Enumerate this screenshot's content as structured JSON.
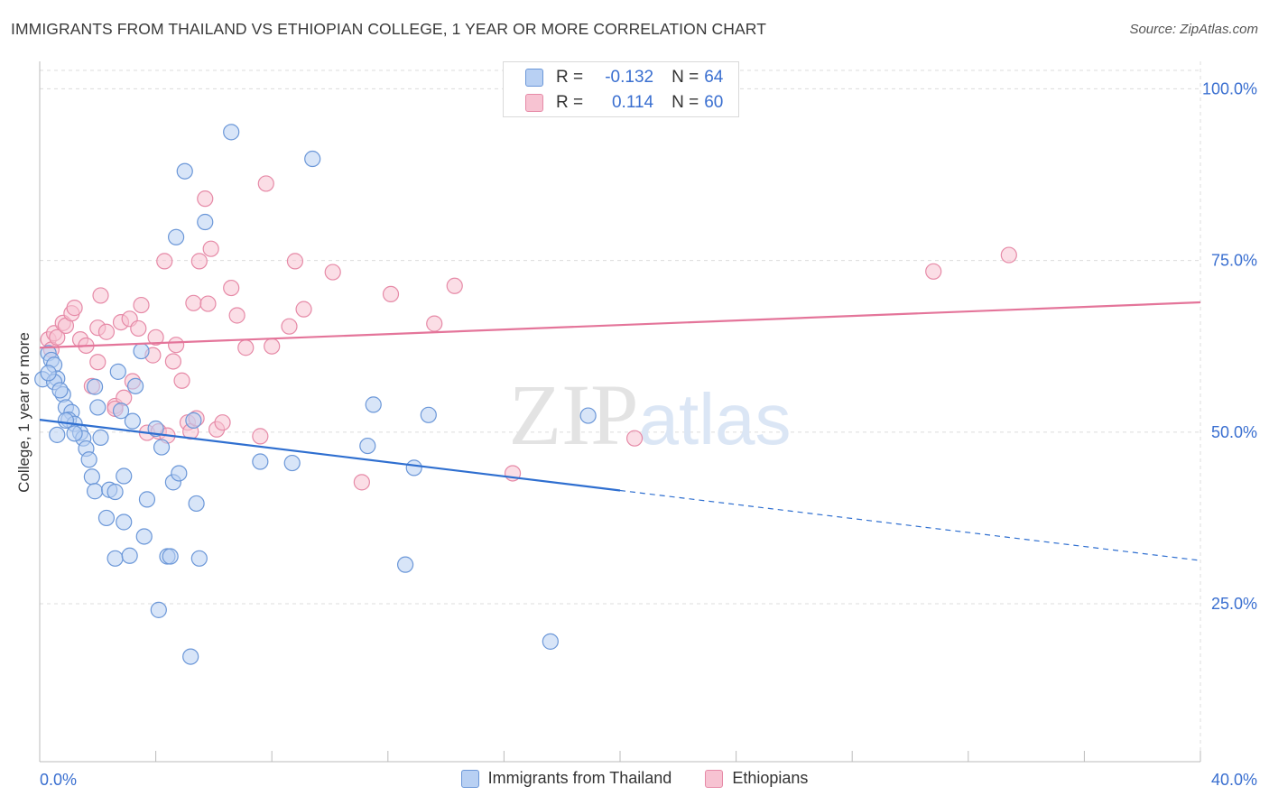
{
  "title": "IMMIGRANTS FROM THAILAND VS ETHIOPIAN COLLEGE, 1 YEAR OR MORE CORRELATION CHART",
  "source": "Source: ZipAtlas.com",
  "watermark": "ZIPatlas",
  "colors": {
    "blue_fill": "#b8d0f3",
    "blue_stroke": "#6b97d8",
    "blue_line": "#2f6fd0",
    "pink_fill": "#f7c3d2",
    "pink_stroke": "#e68aa7",
    "pink_line": "#e4759a",
    "axis_text": "#3a6fd0",
    "grid": "#dcdcdc"
  },
  "stats": {
    "blue": {
      "r_label": "R =",
      "r_value": "-0.132",
      "n_label": "N =",
      "n_value": "64"
    },
    "pink": {
      "r_label": "R =",
      "r_value": "0.114",
      "n_label": "N =",
      "n_value": "60"
    }
  },
  "chart_data": {
    "type": "scatter",
    "title": "IMMIGRANTS FROM THAILAND VS ETHIOPIAN COLLEGE, 1 YEAR OR MORE CORRELATION CHART",
    "xlabel": "",
    "ylabel": "College, 1 year or more",
    "xlim": [
      0,
      40
    ],
    "ylim": [
      2,
      104
    ],
    "x_tick_labels": [
      "0.0%",
      "40.0%"
    ],
    "y_ticks": [
      25,
      50,
      75,
      100
    ],
    "y_tick_labels": [
      "25.0%",
      "50.0%",
      "75.0%",
      "100.0%"
    ],
    "grid": true,
    "legend_position": "bottom",
    "series": [
      {
        "name": "Immigrants from Thailand",
        "color": "#6b97d8",
        "points": [
          [
            0.1,
            57.7
          ],
          [
            0.3,
            61.5
          ],
          [
            0.4,
            60.5
          ],
          [
            0.5,
            59.8
          ],
          [
            0.6,
            57.8
          ],
          [
            0.5,
            57.3
          ],
          [
            0.8,
            55.5
          ],
          [
            0.9,
            53.6
          ],
          [
            0.7,
            56.1
          ],
          [
            1.1,
            52.9
          ],
          [
            1.0,
            51.8
          ],
          [
            1.2,
            51.2
          ],
          [
            1.4,
            49.9
          ],
          [
            1.5,
            49.1
          ],
          [
            1.6,
            47.6
          ],
          [
            1.7,
            46.0
          ],
          [
            1.8,
            43.5
          ],
          [
            1.9,
            41.4
          ],
          [
            2.1,
            49.2
          ],
          [
            2.0,
            53.6
          ],
          [
            1.9,
            56.6
          ],
          [
            2.4,
            41.6
          ],
          [
            2.3,
            37.5
          ],
          [
            2.6,
            31.6
          ],
          [
            2.7,
            58.8
          ],
          [
            2.8,
            53.1
          ],
          [
            2.9,
            43.6
          ],
          [
            2.9,
            36.9
          ],
          [
            3.1,
            32.0
          ],
          [
            3.2,
            51.6
          ],
          [
            3.3,
            56.7
          ],
          [
            3.6,
            34.8
          ],
          [
            3.7,
            40.2
          ],
          [
            4.1,
            24.1
          ],
          [
            4.2,
            47.8
          ],
          [
            4.4,
            31.9
          ],
          [
            4.5,
            31.9
          ],
          [
            4.6,
            42.7
          ],
          [
            4.8,
            44.0
          ],
          [
            4.7,
            78.4
          ],
          [
            5.0,
            88.0
          ],
          [
            5.2,
            17.3
          ],
          [
            5.3,
            51.7
          ],
          [
            5.4,
            39.6
          ],
          [
            5.5,
            31.6
          ],
          [
            5.7,
            80.6
          ],
          [
            6.6,
            93.7
          ],
          [
            7.6,
            45.7
          ],
          [
            8.7,
            45.5
          ],
          [
            9.4,
            89.8
          ],
          [
            11.3,
            48.0
          ],
          [
            11.5,
            54.0
          ],
          [
            12.6,
            30.7
          ],
          [
            12.9,
            44.8
          ],
          [
            13.4,
            52.5
          ],
          [
            17.6,
            19.5
          ],
          [
            18.9,
            52.4
          ],
          [
            0.3,
            58.6
          ],
          [
            1.2,
            49.8
          ],
          [
            2.6,
            41.3
          ],
          [
            0.6,
            49.6
          ],
          [
            0.9,
            51.7
          ],
          [
            4.0,
            50.5
          ],
          [
            3.5,
            61.8
          ]
        ]
      },
      {
        "name": "Ethiopians",
        "color": "#e68aa7",
        "points": [
          [
            0.3,
            63.5
          ],
          [
            0.4,
            62.0
          ],
          [
            0.5,
            64.4
          ],
          [
            0.6,
            63.8
          ],
          [
            0.8,
            65.9
          ],
          [
            0.9,
            65.5
          ],
          [
            1.1,
            67.3
          ],
          [
            1.2,
            68.1
          ],
          [
            1.4,
            63.5
          ],
          [
            1.6,
            62.6
          ],
          [
            1.8,
            56.7
          ],
          [
            2.0,
            65.2
          ],
          [
            2.1,
            69.9
          ],
          [
            2.3,
            64.6
          ],
          [
            2.6,
            53.8
          ],
          [
            2.8,
            66.0
          ],
          [
            2.9,
            55.0
          ],
          [
            3.1,
            66.5
          ],
          [
            3.2,
            57.4
          ],
          [
            3.4,
            65.1
          ],
          [
            3.5,
            68.5
          ],
          [
            3.7,
            49.9
          ],
          [
            3.9,
            61.2
          ],
          [
            4.0,
            63.8
          ],
          [
            4.1,
            50.1
          ],
          [
            4.3,
            74.9
          ],
          [
            4.4,
            49.5
          ],
          [
            4.6,
            60.3
          ],
          [
            4.7,
            62.7
          ],
          [
            4.9,
            57.5
          ],
          [
            5.1,
            51.4
          ],
          [
            5.2,
            50.1
          ],
          [
            5.3,
            68.8
          ],
          [
            5.4,
            52.0
          ],
          [
            5.5,
            74.9
          ],
          [
            5.7,
            84.0
          ],
          [
            5.8,
            68.7
          ],
          [
            5.9,
            76.7
          ],
          [
            6.1,
            50.4
          ],
          [
            6.3,
            51.4
          ],
          [
            6.6,
            71.0
          ],
          [
            6.8,
            67.0
          ],
          [
            7.1,
            62.3
          ],
          [
            7.6,
            49.4
          ],
          [
            7.8,
            86.2
          ],
          [
            8.0,
            62.5
          ],
          [
            8.6,
            65.4
          ],
          [
            8.8,
            74.9
          ],
          [
            9.1,
            67.9
          ],
          [
            10.1,
            73.3
          ],
          [
            11.1,
            42.7
          ],
          [
            12.1,
            70.1
          ],
          [
            13.6,
            65.8
          ],
          [
            14.3,
            71.3
          ],
          [
            16.3,
            44.0
          ],
          [
            20.5,
            49.1
          ],
          [
            30.8,
            73.4
          ],
          [
            33.4,
            75.8
          ],
          [
            2.6,
            53.4
          ],
          [
            2.0,
            60.2
          ]
        ]
      }
    ],
    "trend_lines": [
      {
        "series": "Immigrants from Thailand",
        "solid_from": [
          0,
          51.8
        ],
        "solid_to": [
          20,
          41.5
        ],
        "dashed_to": [
          40,
          31.3
        ]
      },
      {
        "series": "Ethiopians",
        "from": [
          0,
          62.3
        ],
        "to": [
          40,
          68.9
        ]
      }
    ]
  }
}
